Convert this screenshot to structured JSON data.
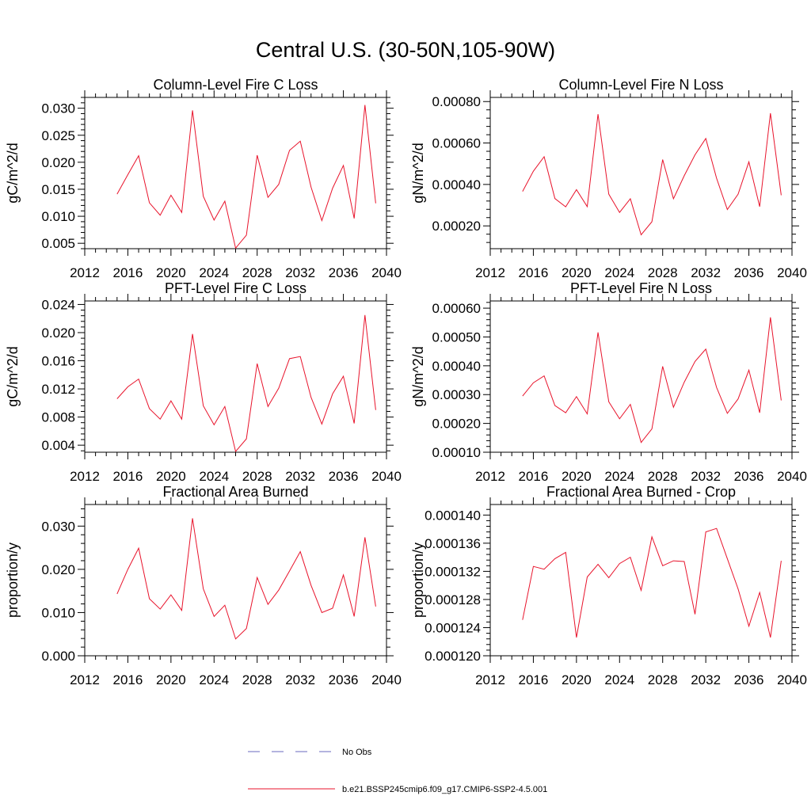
{
  "title": "Central U.S. (30-50N,105-90W)",
  "legend": {
    "items": [
      {
        "label": "No Obs",
        "color": "#6a6abf",
        "style": "dashed"
      },
      {
        "label": "b.e21.BSSP245cmip6.f09_g17.CMIP6-SSP2-4.5.001",
        "color": "#e8132b",
        "style": "solid"
      }
    ]
  },
  "chart_data": [
    {
      "type": "line",
      "title": "Column-Level Fire C Loss",
      "ylabel": "gC/m^2/d",
      "xlim": [
        2012,
        2040
      ],
      "ylim": [
        0.004,
        0.032
      ],
      "xticks": [
        "2012",
        "2016",
        "2020",
        "2024",
        "2028",
        "2032",
        "2036",
        "2040"
      ],
      "yticks": [
        {
          "v": 0.005,
          "label": "0.005"
        },
        {
          "v": 0.01,
          "label": "0.010"
        },
        {
          "v": 0.015,
          "label": "0.015"
        },
        {
          "v": 0.02,
          "label": "0.020"
        },
        {
          "v": 0.025,
          "label": "0.025"
        },
        {
          "v": 0.03,
          "label": "0.030"
        }
      ],
      "series": [
        {
          "color": "#e8132b",
          "x": [
            2015,
            2016,
            2017,
            2018,
            2019,
            2020,
            2021,
            2022,
            2023,
            2024,
            2025,
            2026,
            2027,
            2028,
            2029,
            2030,
            2031,
            2032,
            2033,
            2034,
            2035,
            2036,
            2037,
            2038,
            2039
          ],
          "values": [
            0.0141,
            0.0177,
            0.0212,
            0.0125,
            0.0102,
            0.0139,
            0.0107,
            0.0296,
            0.0137,
            0.0093,
            0.0128,
            0.0041,
            0.0065,
            0.0213,
            0.0135,
            0.0159,
            0.0222,
            0.0239,
            0.0154,
            0.0092,
            0.0152,
            0.0194,
            0.0096,
            0.0306,
            0.0124
          ]
        }
      ]
    },
    {
      "type": "line",
      "title": "Column-Level Fire N Loss",
      "ylabel": "gN/m^2/d",
      "xlim": [
        2012,
        2040
      ],
      "ylim": [
        9e-05,
        0.00082
      ],
      "xticks": [
        "2012",
        "2016",
        "2020",
        "2024",
        "2028",
        "2032",
        "2036",
        "2040"
      ],
      "yticks": [
        {
          "v": 0.0002,
          "label": "0.00020"
        },
        {
          "v": 0.0004,
          "label": "0.00040"
        },
        {
          "v": 0.0006,
          "label": "0.00060"
        },
        {
          "v": 0.0008,
          "label": "0.00080"
        }
      ],
      "series": [
        {
          "color": "#e8132b",
          "x": [
            2015,
            2016,
            2017,
            2018,
            2019,
            2020,
            2021,
            2022,
            2023,
            2024,
            2025,
            2026,
            2027,
            2028,
            2029,
            2030,
            2031,
            2032,
            2033,
            2034,
            2035,
            2036,
            2037,
            2038,
            2039
          ],
          "values": [
            0.000366,
            0.000464,
            0.000534,
            0.000332,
            0.000292,
            0.000375,
            0.000293,
            0.000739,
            0.000353,
            0.000265,
            0.000331,
            0.000157,
            0.00022,
            0.00052,
            0.000331,
            0.000442,
            0.000543,
            0.000622,
            0.00043,
            0.000279,
            0.000353,
            0.000509,
            0.000293,
            0.000744,
            0.000348
          ]
        }
      ]
    },
    {
      "type": "line",
      "title": "PFT-Level Fire C Loss",
      "ylabel": "gC/m^2/d",
      "xlim": [
        2012,
        2040
      ],
      "ylim": [
        0.003,
        0.0245
      ],
      "xticks": [
        "2012",
        "2016",
        "2020",
        "2024",
        "2028",
        "2032",
        "2036",
        "2040"
      ],
      "yticks": [
        {
          "v": 0.004,
          "label": "0.004"
        },
        {
          "v": 0.008,
          "label": "0.008"
        },
        {
          "v": 0.012,
          "label": "0.012"
        },
        {
          "v": 0.016,
          "label": "0.016"
        },
        {
          "v": 0.02,
          "label": "0.020"
        },
        {
          "v": 0.024,
          "label": "0.024"
        }
      ],
      "series": [
        {
          "color": "#e8132b",
          "x": [
            2015,
            2016,
            2017,
            2018,
            2019,
            2020,
            2021,
            2022,
            2023,
            2024,
            2025,
            2026,
            2027,
            2028,
            2029,
            2030,
            2031,
            2032,
            2033,
            2034,
            2035,
            2036,
            2037,
            2038,
            2039
          ],
          "values": [
            0.0106,
            0.0123,
            0.0134,
            0.0092,
            0.0077,
            0.0103,
            0.0077,
            0.0198,
            0.0096,
            0.0069,
            0.0095,
            0.0031,
            0.0049,
            0.0156,
            0.0095,
            0.0121,
            0.0163,
            0.0166,
            0.0108,
            0.007,
            0.0113,
            0.0138,
            0.0071,
            0.0225,
            0.009
          ]
        }
      ]
    },
    {
      "type": "line",
      "title": "PFT-Level Fire N Loss",
      "ylabel": "gN/m^2/d",
      "xlim": [
        2012,
        2040
      ],
      "ylim": [
        0.0001,
        0.000625
      ],
      "xticks": [
        "2012",
        "2016",
        "2020",
        "2024",
        "2028",
        "2032",
        "2036",
        "2040"
      ],
      "yticks": [
        {
          "v": 0.0001,
          "label": "0.00010"
        },
        {
          "v": 0.0002,
          "label": "0.00020"
        },
        {
          "v": 0.0003,
          "label": "0.00030"
        },
        {
          "v": 0.0004,
          "label": "0.00040"
        },
        {
          "v": 0.0005,
          "label": "0.00050"
        },
        {
          "v": 0.0006,
          "label": "0.00060"
        }
      ],
      "series": [
        {
          "color": "#e8132b",
          "x": [
            2015,
            2016,
            2017,
            2018,
            2019,
            2020,
            2021,
            2022,
            2023,
            2024,
            2025,
            2026,
            2027,
            2028,
            2029,
            2030,
            2031,
            2032,
            2033,
            2034,
            2035,
            2036,
            2037,
            2038,
            2039
          ],
          "values": [
            0.000295,
            0.000341,
            0.000365,
            0.000262,
            0.000237,
            0.000293,
            0.000233,
            0.000516,
            0.000275,
            0.000216,
            0.000266,
            0.000134,
            0.000181,
            0.000398,
            0.000256,
            0.000343,
            0.000415,
            0.000458,
            0.000325,
            0.000235,
            0.000285,
            0.000385,
            0.000237,
            0.000568,
            0.00028
          ]
        }
      ]
    },
    {
      "type": "line",
      "title": "Fractional Area Burned",
      "ylabel": "proportion/y",
      "xlim": [
        2012,
        2040
      ],
      "ylim": [
        0.0,
        0.035
      ],
      "xticks": [
        "2012",
        "2016",
        "2020",
        "2024",
        "2028",
        "2032",
        "2036",
        "2040"
      ],
      "yticks": [
        {
          "v": 0.0,
          "label": "0.000"
        },
        {
          "v": 0.01,
          "label": "0.010"
        },
        {
          "v": 0.02,
          "label": "0.020"
        },
        {
          "v": 0.03,
          "label": "0.030"
        }
      ],
      "series": [
        {
          "color": "#e8132b",
          "x": [
            2015,
            2016,
            2017,
            2018,
            2019,
            2020,
            2021,
            2022,
            2023,
            2024,
            2025,
            2026,
            2027,
            2028,
            2029,
            2030,
            2031,
            2032,
            2033,
            2034,
            2035,
            2036,
            2037,
            2038,
            2039
          ],
          "values": [
            0.0143,
            0.02,
            0.0249,
            0.0132,
            0.0108,
            0.0141,
            0.0105,
            0.0318,
            0.0155,
            0.0091,
            0.0117,
            0.0039,
            0.0063,
            0.0181,
            0.0119,
            0.0152,
            0.0196,
            0.0241,
            0.0163,
            0.01,
            0.011,
            0.0187,
            0.0091,
            0.0274,
            0.0114
          ]
        }
      ]
    },
    {
      "type": "line",
      "title": "Fractional Area Burned - Crop",
      "ylabel": "proportion/y",
      "xlim": [
        2012,
        2040
      ],
      "ylim": [
        0.00012,
        0.0001415
      ],
      "xticks": [
        "2012",
        "2016",
        "2020",
        "2024",
        "2028",
        "2032",
        "2036",
        "2040"
      ],
      "yticks": [
        {
          "v": 0.00012,
          "label": "0.000120"
        },
        {
          "v": 0.000124,
          "label": "0.000124"
        },
        {
          "v": 0.000128,
          "label": "0.000128"
        },
        {
          "v": 0.000132,
          "label": "0.000132"
        },
        {
          "v": 0.000136,
          "label": "0.000136"
        },
        {
          "v": 0.00014,
          "label": "0.000140"
        }
      ],
      "series": [
        {
          "color": "#e8132b",
          "x": [
            2015,
            2016,
            2017,
            2018,
            2019,
            2020,
            2021,
            2022,
            2023,
            2024,
            2025,
            2026,
            2027,
            2028,
            2029,
            2030,
            2031,
            2032,
            2033,
            2034,
            2035,
            2036,
            2037,
            2038,
            2039
          ],
          "values": [
            0.0001251,
            0.0001327,
            0.0001323,
            0.0001338,
            0.0001347,
            0.0001226,
            0.0001312,
            0.000133,
            0.0001311,
            0.0001331,
            0.000134,
            0.0001293,
            0.0001369,
            0.0001328,
            0.0001335,
            0.0001334,
            0.0001259,
            0.0001376,
            0.0001381,
            0.0001338,
            0.0001295,
            0.0001242,
            0.000129,
            0.0001226,
            0.0001335
          ]
        }
      ]
    }
  ]
}
